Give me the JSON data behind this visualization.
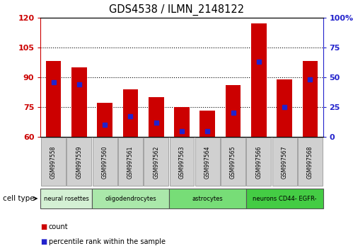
{
  "title": "GDS4538 / ILMN_2148122",
  "samples": [
    "GSM997558",
    "GSM997559",
    "GSM997560",
    "GSM997561",
    "GSM997562",
    "GSM997563",
    "GSM997564",
    "GSM997565",
    "GSM997566",
    "GSM997567",
    "GSM997568"
  ],
  "count_values": [
    98,
    95,
    77,
    84,
    80,
    75,
    73,
    86,
    117,
    89,
    98
  ],
  "percentile_values": [
    46,
    44,
    10,
    17,
    12,
    5,
    5,
    20,
    63,
    25,
    48
  ],
  "ylim_left": [
    60,
    120
  ],
  "ylim_right": [
    0,
    100
  ],
  "yticks_left": [
    60,
    75,
    90,
    105,
    120
  ],
  "yticks_right": [
    0,
    25,
    50,
    75,
    100
  ],
  "bar_color": "#cc0000",
  "blue_color": "#2222cc",
  "cell_type_groups": [
    {
      "label": "neural rosettes",
      "start": 0,
      "end": 1,
      "color": "#d4f0d4"
    },
    {
      "label": "oligodendrocytes",
      "start": 2,
      "end": 4,
      "color": "#aae8aa"
    },
    {
      "label": "astrocytes",
      "start": 5,
      "end": 7,
      "color": "#77dd77"
    },
    {
      "label": "neurons CD44- EGFR-",
      "start": 8,
      "end": 10,
      "color": "#44cc44"
    }
  ],
  "tick_bg_color": "#d0d0d0",
  "legend_count_label": "count",
  "legend_pct_label": "percentile rank within the sample",
  "cell_type_label": "cell type",
  "grid_color": "#000000",
  "spine_color_left": "#cc0000",
  "spine_color_right": "#2222cc"
}
